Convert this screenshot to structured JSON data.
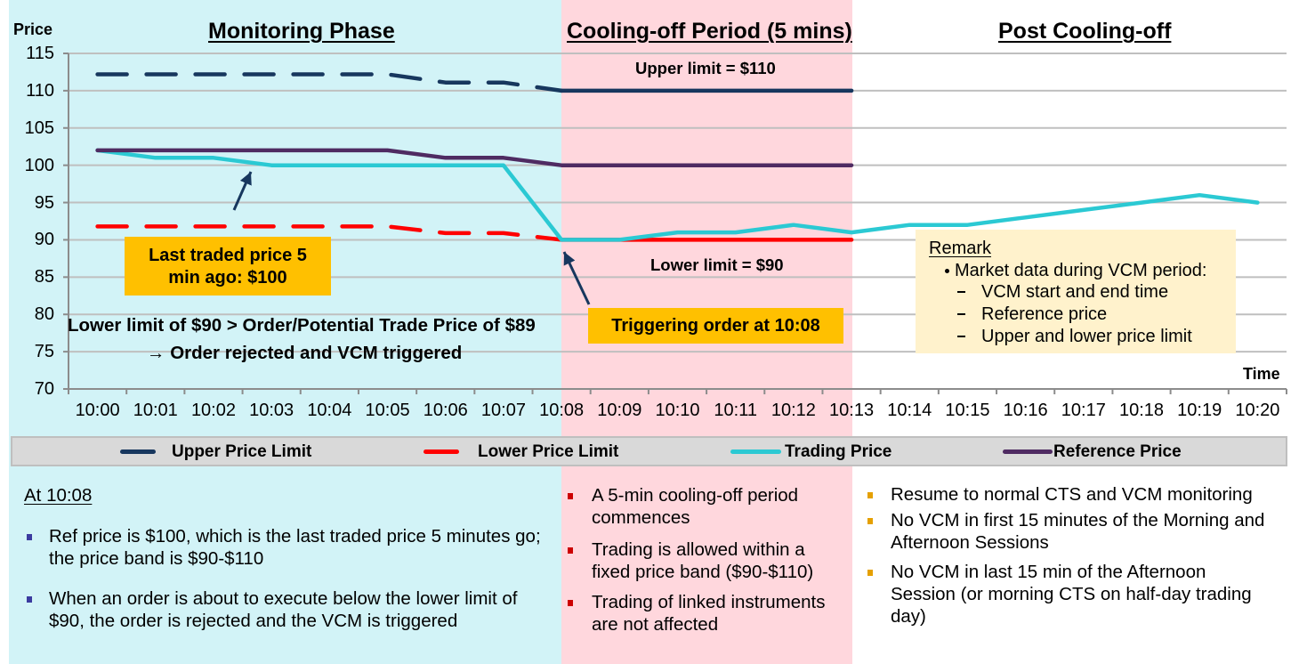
{
  "phases": [
    {
      "title": "Monitoring Phase",
      "color": "#D2F3F7"
    },
    {
      "title": "Cooling-off Period (5 mins)",
      "color": "#FFD7DD"
    },
    {
      "title": "Post Cooling-off",
      "color": "#FFFFFF"
    }
  ],
  "chart_data": {
    "type": "line",
    "title": "",
    "xlabel": "Time",
    "ylabel": "Price",
    "ylim": [
      70,
      115
    ],
    "yticks": [
      70,
      75,
      80,
      85,
      90,
      95,
      100,
      105,
      110,
      115
    ],
    "grid": true,
    "legend_position": "bottom",
    "categories": [
      "10:00",
      "10:01",
      "10:02",
      "10:03",
      "10:04",
      "10:05",
      "10:06",
      "10:07",
      "10:08",
      "10:09",
      "10:10",
      "10:11",
      "10:12",
      "10:13",
      "10:14",
      "10:15",
      "10:16",
      "10:17",
      "10:18",
      "10:19",
      "10:20"
    ],
    "series": [
      {
        "name": "Upper Price Limit",
        "color": "#17375E",
        "values": [
          112.2,
          112.2,
          112.2,
          112.2,
          112.2,
          112.2,
          111.1,
          111.1,
          110,
          110,
          110,
          110,
          110,
          110,
          null,
          null,
          null,
          null,
          null,
          null,
          null
        ],
        "segments": [
          {
            "from": "10:00",
            "to": "10:08",
            "style": "dashed"
          },
          {
            "from": "10:08",
            "to": "10:13",
            "style": "solid"
          }
        ]
      },
      {
        "name": "Lower Price Limit",
        "color": "#FF0000",
        "values": [
          91.8,
          91.8,
          91.8,
          91.8,
          91.8,
          91.8,
          90.9,
          90.9,
          90,
          90,
          90,
          90,
          90,
          90,
          null,
          null,
          null,
          null,
          null,
          null,
          null
        ],
        "segments": [
          {
            "from": "10:00",
            "to": "10:08",
            "style": "dashed"
          },
          {
            "from": "10:08",
            "to": "10:13",
            "style": "solid"
          }
        ]
      },
      {
        "name": "Trading Price",
        "color": "#2BC9D3",
        "values": [
          102,
          101,
          101,
          100,
          100,
          100,
          100,
          100,
          90,
          90,
          91,
          91,
          92,
          91,
          92,
          92,
          93,
          94,
          95,
          96,
          95
        ],
        "segments": [
          {
            "from": "10:00",
            "to": "10:20",
            "style": "solid"
          }
        ]
      },
      {
        "name": "Reference Price",
        "color": "#4F2B62",
        "values": [
          102,
          102,
          102,
          102,
          102,
          102,
          101,
          101,
          100,
          100,
          100,
          100,
          100,
          100,
          null,
          null,
          null,
          null,
          null,
          null,
          null
        ],
        "segments": [
          {
            "from": "10:00",
            "to": "10:13",
            "style": "solid"
          }
        ]
      }
    ],
    "annotations": [
      "Upper limit = $110",
      "Lower limit = $90",
      "Last traded price 5 min ago: $100",
      "Triggering order at 10:08",
      "Lower limit of $90 > Order/Potential Trade Price of $89",
      "→ Order rejected and VCM triggered"
    ]
  },
  "annotations": {
    "upper_limit_label": "Upper limit = $110",
    "lower_limit_label": "Lower limit = $90",
    "last_traded_box": [
      "Last traded price 5",
      "min ago: $100"
    ],
    "trigger_box": "Triggering order at 10:08",
    "rule_text": "Lower limit of $90 > Order/Potential Trade Price of $89",
    "result_text": "→ Order rejected and VCM triggered",
    "box_color": "#FFC000"
  },
  "remark": {
    "title": "Remark",
    "bullet": "Market data during VCM period:",
    "sub_items": [
      "VCM start and end time",
      "Reference price",
      "Upper and lower price limit"
    ],
    "background": "#FFF2CC"
  },
  "legend": {
    "items": [
      {
        "label": "Upper Price Limit",
        "color": "#17375E"
      },
      {
        "label": "Lower Price Limit",
        "color": "#FF0000"
      },
      {
        "label": "Trading Price",
        "color": "#2BC9D3"
      },
      {
        "label": "Reference Price",
        "color": "#4F2B62"
      }
    ]
  },
  "notes": {
    "monitoring": {
      "heading": "At 10:08",
      "bullet_color": "#3B3BA0",
      "bullets": [
        {
          "lines": [
            "Ref price is $100, which is the last traded price 5 minutes go;",
            "the price band is $90-$110"
          ]
        },
        {
          "lines": [
            "When an order is about to execute below the lower limit of",
            "$90, the order is rejected and the VCM is triggered"
          ]
        }
      ]
    },
    "cooling": {
      "bullet_color": "#CC0000",
      "bullets": [
        {
          "lines": [
            "A 5-min cooling-off period",
            "commences"
          ]
        },
        {
          "lines": [
            "Trading is allowed within a",
            "fixed price band ($90-$110)"
          ]
        },
        {
          "lines": [
            "Trading of linked instruments",
            "are not affected"
          ]
        }
      ]
    },
    "post": {
      "bullet_color": "#E5A000",
      "bullets": [
        {
          "lines": [
            "Resume to normal CTS and VCM monitoring"
          ]
        },
        {
          "lines": [
            "No VCM in first 15 minutes of the Morning and",
            "Afternoon Sessions"
          ]
        },
        {
          "lines": [
            "No VCM in last 15 min of the Afternoon",
            "Session (or morning CTS on half-day trading",
            "day)"
          ]
        }
      ]
    }
  }
}
